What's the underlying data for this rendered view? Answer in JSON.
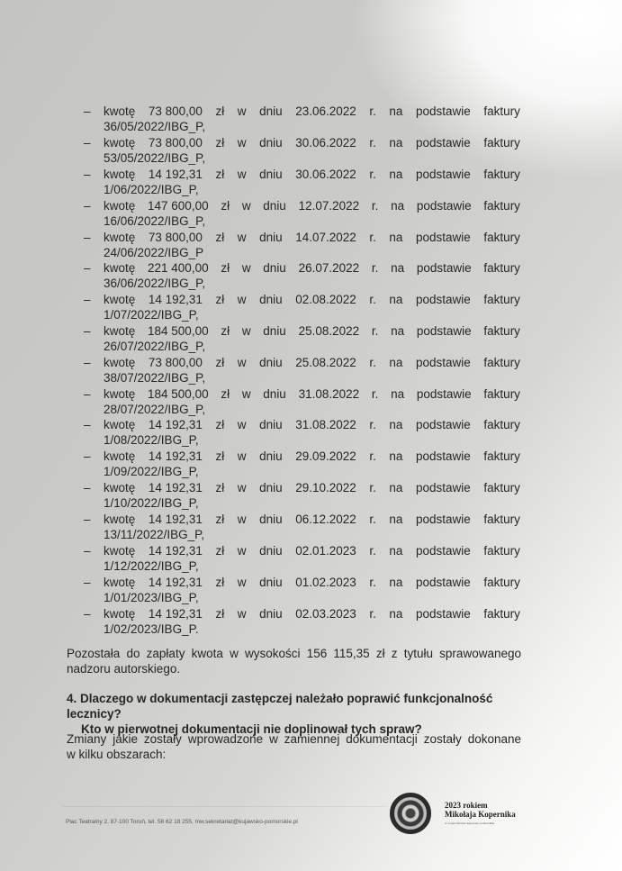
{
  "words": {
    "dash": "–",
    "kwote": "kwotę",
    "zl": "zł",
    "w": "w",
    "dniu": "dniu",
    "r": "r.",
    "na": "na",
    "podstawie": "podstawie",
    "faktury": "faktury"
  },
  "entries": [
    {
      "amount": "73 800,00",
      "date": "23.06.2022",
      "invoice": "36/05/2022/IBG_P,"
    },
    {
      "amount": "73 800,00",
      "date": "30.06.2022",
      "invoice": "53/05/2022/IBG_P,"
    },
    {
      "amount": "14 192,31",
      "date": "30.06.2022",
      "invoice": "1/06/2022/IBG_P,"
    },
    {
      "amount": "147 600,00",
      "date": "12.07.2022",
      "invoice": "16/06/2022/IBG_P,"
    },
    {
      "amount": "73 800,00",
      "date": "14.07.2022",
      "invoice": "24/06/2022/IBG_P"
    },
    {
      "amount": "221 400,00",
      "date": "26.07.2022",
      "invoice": "36/06/2022/IBG_P,"
    },
    {
      "amount": "14 192,31",
      "date": "02.08.2022",
      "invoice": "1/07/2022/IBG_P,"
    },
    {
      "amount": "184 500,00",
      "date": "25.08.2022",
      "invoice": "26/07/2022/IBG_P,"
    },
    {
      "amount": "73 800,00",
      "date": "25.08.2022",
      "invoice": "38/07/2022/IBG_P,"
    },
    {
      "amount": "184 500,00",
      "date": "31.08.2022",
      "invoice": "28/07/2022/IBG_P,"
    },
    {
      "amount": "14 192,31",
      "date": "31.08.2022",
      "invoice": "1/08/2022/IBG_P,"
    },
    {
      "amount": "14 192,31",
      "date": "29.09.2022",
      "invoice": "1/09/2022/IBG_P,"
    },
    {
      "amount": "14 192,31",
      "date": "29.10.2022",
      "invoice": "1/10/2022/IBG_P,"
    },
    {
      "amount": "14 192,31",
      "date": "06.12.2022",
      "invoice": "13/11/2022/IBG_P,"
    },
    {
      "amount": "14 192,31",
      "date": "02.01.2023",
      "invoice": "1/12/2022/IBG_P,"
    },
    {
      "amount": "14 192,31",
      "date": "01.02.2023",
      "invoice": "1/01/2023/IBG_P,"
    },
    {
      "amount": "14 192,31",
      "date": "02.03.2023",
      "invoice": "1/02/2023/IBG_P."
    }
  ],
  "remaining": {
    "line1": "Pozostała do zapłaty kwota w wysokości 156 115,35 zł z tytułu sprawowanego",
    "line2": "nadzoru autorskiego."
  },
  "question": {
    "line1": "4. Dlaczego w dokumentacji zastępczej należało poprawić funkcjonalność lecznicy?",
    "line2": "Kto w pierwotnej dokumentacji nie doplinował tych spraw?"
  },
  "changes": {
    "line1": "Zmiany jakie zostały wprowadzone w zamiennej dokumentacji zostały dokonane",
    "line2": "w kilku obszarach:"
  },
  "footer": {
    "address": "Plac Teatralny 2, 87-100 Toruń, tel. 56 62 18 255, mw.sekretariat@kujawsko-pomorskie.pl"
  },
  "logo": {
    "line1": "2023 rokiem",
    "line2": "Mikołaja Kopernika",
    "line3": "w województwie kujawsko-pomorskim"
  }
}
